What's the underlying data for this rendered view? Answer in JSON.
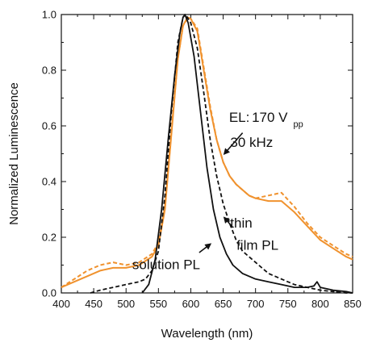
{
  "chart_data": {
    "type": "line",
    "xlabel": "Wavelength (nm)",
    "ylabel": "Normalized Luminescence",
    "xlim": [
      400,
      850
    ],
    "ylim": [
      0,
      1.0
    ],
    "x_ticks": [
      400,
      450,
      500,
      550,
      600,
      650,
      700,
      750,
      800,
      850
    ],
    "x_tick_labels": [
      "400",
      "450",
      "500",
      "550",
      "600",
      "650",
      "700",
      "750",
      "800",
      "850"
    ],
    "y_ticks": [
      0,
      0.2,
      0.4,
      0.6,
      0.8,
      1.0
    ],
    "y_tick_labels": [
      "0.0",
      "0.2",
      "0.4",
      "0.6",
      "0.8",
      "1.0"
    ],
    "grid": false,
    "series": [
      {
        "color": "#F0922E",
        "dash": "solid",
        "points": [
          [
            400,
            0.02
          ],
          [
            420,
            0.04
          ],
          [
            440,
            0.06
          ],
          [
            460,
            0.08
          ],
          [
            480,
            0.09
          ],
          [
            500,
            0.09
          ],
          [
            520,
            0.1
          ],
          [
            540,
            0.13
          ],
          [
            550,
            0.17
          ],
          [
            560,
            0.3
          ],
          [
            570,
            0.57
          ],
          [
            580,
            0.84
          ],
          [
            588,
            0.96
          ],
          [
            595,
            0.99
          ],
          [
            600,
            0.985
          ],
          [
            610,
            0.94
          ],
          [
            620,
            0.8
          ],
          [
            630,
            0.66
          ],
          [
            640,
            0.55
          ],
          [
            650,
            0.47
          ],
          [
            660,
            0.42
          ],
          [
            670,
            0.39
          ],
          [
            680,
            0.37
          ],
          [
            690,
            0.35
          ],
          [
            700,
            0.34
          ],
          [
            720,
            0.33
          ],
          [
            740,
            0.33
          ],
          [
            760,
            0.29
          ],
          [
            780,
            0.24
          ],
          [
            800,
            0.19
          ],
          [
            820,
            0.16
          ],
          [
            840,
            0.13
          ],
          [
            850,
            0.12
          ]
        ]
      },
      {
        "color": "#F0922E",
        "dash": "dashed",
        "points": [
          [
            400,
            0.02
          ],
          [
            420,
            0.05
          ],
          [
            440,
            0.08
          ],
          [
            460,
            0.1
          ],
          [
            480,
            0.11
          ],
          [
            500,
            0.1
          ],
          [
            520,
            0.11
          ],
          [
            540,
            0.14
          ],
          [
            550,
            0.18
          ],
          [
            560,
            0.31
          ],
          [
            570,
            0.58
          ],
          [
            580,
            0.84
          ],
          [
            588,
            0.96
          ],
          [
            596,
            0.99
          ],
          [
            600,
            0.985
          ],
          [
            610,
            0.95
          ],
          [
            620,
            0.81
          ],
          [
            630,
            0.67
          ],
          [
            640,
            0.55
          ],
          [
            650,
            0.47
          ],
          [
            660,
            0.42
          ],
          [
            670,
            0.39
          ],
          [
            680,
            0.37
          ],
          [
            690,
            0.35
          ],
          [
            700,
            0.34
          ],
          [
            720,
            0.35
          ],
          [
            740,
            0.36
          ],
          [
            760,
            0.31
          ],
          [
            780,
            0.25
          ],
          [
            800,
            0.2
          ],
          [
            820,
            0.17
          ],
          [
            840,
            0.14
          ],
          [
            850,
            0.13
          ]
        ]
      },
      {
        "color": "#111111",
        "dash": "dashed",
        "points": [
          [
            445,
            0.0
          ],
          [
            460,
            0.01
          ],
          [
            480,
            0.02
          ],
          [
            500,
            0.03
          ],
          [
            520,
            0.04
          ],
          [
            530,
            0.05
          ],
          [
            540,
            0.08
          ],
          [
            550,
            0.15
          ],
          [
            560,
            0.35
          ],
          [
            570,
            0.65
          ],
          [
            580,
            0.9
          ],
          [
            588,
            0.99
          ],
          [
            592,
            1.0
          ],
          [
            600,
            0.97
          ],
          [
            610,
            0.88
          ],
          [
            620,
            0.72
          ],
          [
            630,
            0.55
          ],
          [
            640,
            0.42
          ],
          [
            650,
            0.32
          ],
          [
            660,
            0.25
          ],
          [
            670,
            0.19
          ],
          [
            680,
            0.15
          ],
          [
            700,
            0.11
          ],
          [
            720,
            0.07
          ],
          [
            740,
            0.05
          ],
          [
            760,
            0.03
          ],
          [
            780,
            0.02
          ],
          [
            800,
            0.01
          ],
          [
            820,
            0.005
          ],
          [
            840,
            0.0
          ],
          [
            850,
            0.0
          ]
        ]
      },
      {
        "color": "#111111",
        "dash": "solid",
        "points": [
          [
            525,
            0.0
          ],
          [
            535,
            0.03
          ],
          [
            545,
            0.12
          ],
          [
            555,
            0.3
          ],
          [
            565,
            0.55
          ],
          [
            575,
            0.78
          ],
          [
            583,
            0.93
          ],
          [
            588,
            0.99
          ],
          [
            591,
            1.0
          ],
          [
            596,
            0.97
          ],
          [
            605,
            0.85
          ],
          [
            615,
            0.65
          ],
          [
            625,
            0.45
          ],
          [
            635,
            0.3
          ],
          [
            645,
            0.2
          ],
          [
            655,
            0.14
          ],
          [
            665,
            0.1
          ],
          [
            680,
            0.07
          ],
          [
            700,
            0.05
          ],
          [
            720,
            0.04
          ],
          [
            740,
            0.03
          ],
          [
            760,
            0.02
          ],
          [
            780,
            0.02
          ],
          [
            790,
            0.025
          ],
          [
            795,
            0.04
          ],
          [
            800,
            0.02
          ],
          [
            820,
            0.01
          ],
          [
            840,
            0.005
          ],
          [
            850,
            0.0
          ]
        ]
      }
    ],
    "annotations": [
      {
        "text": "EL:",
        "x": 675,
        "y": 0.615
      },
      {
        "text": "170 V",
        "x": 722,
        "y": 0.615
      },
      {
        "text": "pp",
        "x": 766,
        "y": 0.595
      },
      {
        "text": "30 kHz",
        "x": 694,
        "y": 0.525
      },
      {
        "text": "thin",
        "x": 678,
        "y": 0.235
      },
      {
        "text": "film PL",
        "x": 703,
        "y": 0.155
      },
      {
        "text": "solution PL",
        "x": 562,
        "y": 0.085
      }
    ],
    "arrows": [
      {
        "from": [
          680,
          0.575
        ],
        "to": [
          652,
          0.5
        ]
      },
      {
        "from": [
          665,
          0.235
        ],
        "to": [
          652,
          0.27
        ]
      },
      {
        "from": [
          613,
          0.145
        ],
        "to": [
          630,
          0.175
        ]
      }
    ]
  }
}
